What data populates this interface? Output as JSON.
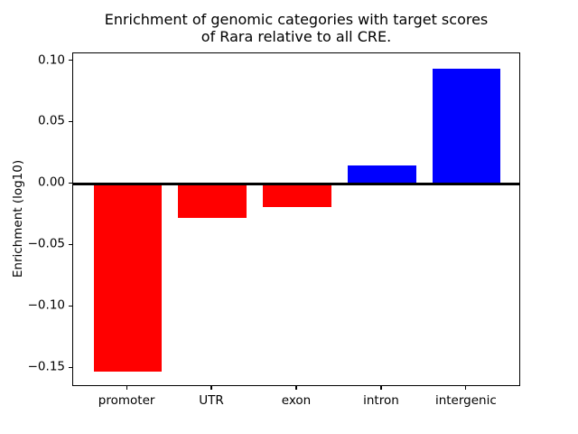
{
  "figure": {
    "title_lines": [
      "Enrichment of genomic categories with target scores",
      "of Rara relative to all CRE."
    ]
  },
  "chart_data": {
    "type": "bar",
    "title": "Enrichment of genomic categories with target scores of Rara relative to all CRE.",
    "categories": [
      "promoter",
      "UTR",
      "exon",
      "intron",
      "intergenic"
    ],
    "values": [
      -0.153,
      -0.028,
      -0.019,
      0.015,
      0.094
    ],
    "bar_colors": [
      "#ff0000",
      "#ff0000",
      "#ff0000",
      "#0000ff",
      "#0000ff"
    ],
    "negative_color": "#ff0000",
    "positive_color": "#0000ff",
    "xlabel": "",
    "ylabel": "Enrichment (log10)",
    "ylim": [
      -0.1653,
      0.1063
    ],
    "yticks": [
      {
        "value": 0.1,
        "label": "0.10"
      },
      {
        "value": 0.05,
        "label": "0.05"
      },
      {
        "value": 0.0,
        "label": "0.00"
      },
      {
        "value": -0.05,
        "label": "−0.05"
      },
      {
        "value": -0.1,
        "label": "−0.10"
      },
      {
        "value": -0.15,
        "label": "−0.15"
      }
    ],
    "grid": false,
    "legend": null,
    "zero_line": true
  }
}
